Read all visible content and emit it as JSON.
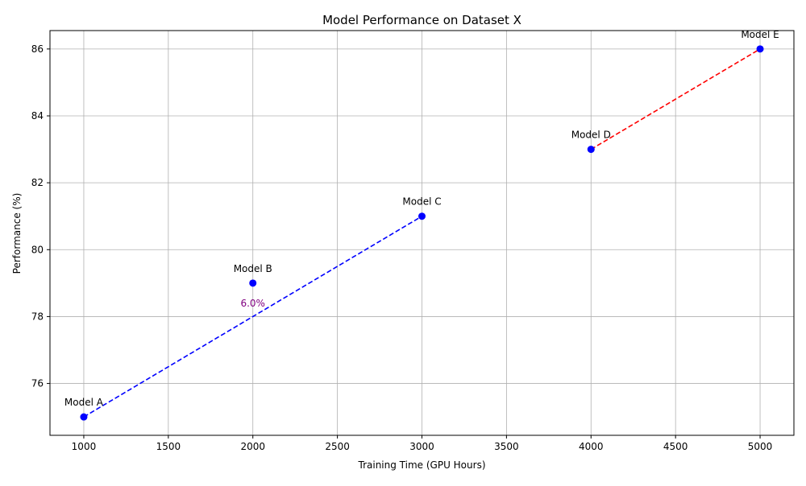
{
  "chart_data": {
    "type": "scatter",
    "title": "Model Performance on Dataset X",
    "xlabel": "Training Time (GPU Hours)",
    "ylabel": "Performance (%)",
    "xlim": [
      800,
      5200
    ],
    "ylim": [
      74.45,
      86.55
    ],
    "xticks": [
      1000,
      1500,
      2000,
      2500,
      3000,
      3500,
      4000,
      4500,
      5000
    ],
    "yticks": [
      76,
      78,
      80,
      82,
      84,
      86
    ],
    "grid": true,
    "points": [
      {
        "label": "Model A",
        "x": 1000,
        "y": 75
      },
      {
        "label": "Model B",
        "x": 2000,
        "y": 79
      },
      {
        "label": "Model C",
        "x": 3000,
        "y": 81
      },
      {
        "label": "Model D",
        "x": 4000,
        "y": 83
      },
      {
        "label": "Model E",
        "x": 5000,
        "y": 86
      }
    ],
    "point_color": "#0000ff",
    "trend_lines": [
      {
        "from": [
          1000,
          75
        ],
        "to": [
          3000,
          81
        ],
        "color": "#0000ff",
        "style": "dashed"
      },
      {
        "from": [
          4000,
          83
        ],
        "to": [
          5000,
          86
        ],
        "color": "#ff0000",
        "style": "dashed"
      }
    ],
    "annotations": [
      {
        "text": "6.0%",
        "x": 2000,
        "y": 78.4,
        "color": "#800080"
      }
    ]
  }
}
